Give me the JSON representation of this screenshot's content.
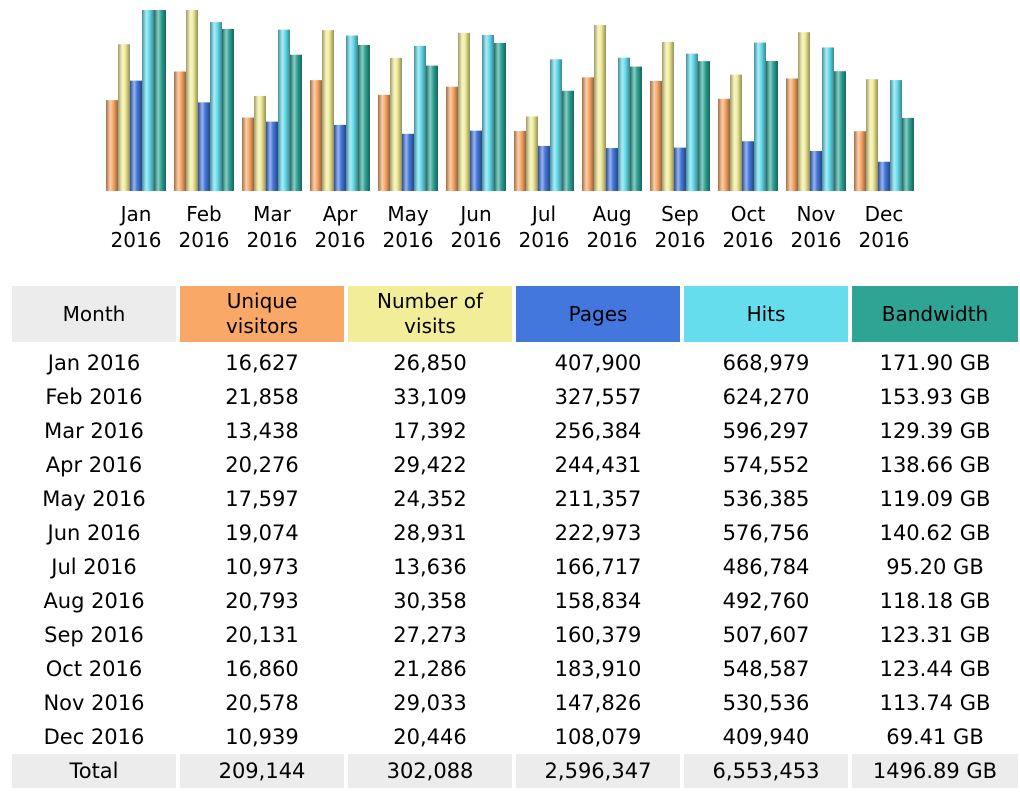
{
  "colors": {
    "unique_visitors": "#f9a868",
    "visits": "#f1ed98",
    "pages": "#4477dd",
    "hits": "#66dded",
    "bandwidth": "#2ea495",
    "month_header": "#ececec"
  },
  "chart_data": {
    "type": "bar",
    "categories": [
      "Jan 2016",
      "Feb 2016",
      "Mar 2016",
      "Apr 2016",
      "May 2016",
      "Jun 2016",
      "Jul 2016",
      "Aug 2016",
      "Sep 2016",
      "Oct 2016",
      "Nov 2016",
      "Dec 2016"
    ],
    "category_labels": [
      [
        "Jan",
        "2016"
      ],
      [
        "Feb",
        "2016"
      ],
      [
        "Mar",
        "2016"
      ],
      [
        "Apr",
        "2016"
      ],
      [
        "May",
        "2016"
      ],
      [
        "Jun",
        "2016"
      ],
      [
        "Jul",
        "2016"
      ],
      [
        "Aug",
        "2016"
      ],
      [
        "Sep",
        "2016"
      ],
      [
        "Oct",
        "2016"
      ],
      [
        "Nov",
        "2016"
      ],
      [
        "Dec",
        "2016"
      ]
    ],
    "series": [
      {
        "key": "unique_visitors",
        "values": [
          16627,
          21858,
          13438,
          20276,
          17597,
          19074,
          10973,
          20793,
          20131,
          16860,
          20578,
          10939
        ]
      },
      {
        "key": "visits",
        "values": [
          26850,
          33109,
          17392,
          29422,
          24352,
          28931,
          13636,
          30358,
          27273,
          21286,
          29033,
          20446
        ]
      },
      {
        "key": "pages",
        "values": [
          407900,
          327557,
          256384,
          244431,
          211357,
          222973,
          166717,
          158834,
          160379,
          183910,
          147826,
          108079
        ]
      },
      {
        "key": "hits",
        "values": [
          668979,
          624270,
          596297,
          574552,
          536385,
          576756,
          486784,
          492760,
          507607,
          548587,
          530536,
          409940
        ]
      },
      {
        "key": "bandwidth",
        "values": [
          171.9,
          153.93,
          129.39,
          138.66,
          119.09,
          140.62,
          95.2,
          118.18,
          123.31,
          123.44,
          113.74,
          69.41
        ],
        "unit": "GB"
      }
    ],
    "scale_groups": [
      [
        "unique_visitors",
        "visits"
      ],
      [
        "pages",
        "hits"
      ],
      [
        "bandwidth"
      ]
    ]
  },
  "table": {
    "headers": {
      "month": "Month",
      "unique_visitors": [
        "Unique",
        "visitors"
      ],
      "visits": [
        "Number of",
        "visits"
      ],
      "pages": "Pages",
      "hits": "Hits",
      "bandwidth": "Bandwidth"
    },
    "rows": [
      [
        "Jan 2016",
        "16,627",
        "26,850",
        "407,900",
        "668,979",
        "171.90 GB"
      ],
      [
        "Feb 2016",
        "21,858",
        "33,109",
        "327,557",
        "624,270",
        "153.93 GB"
      ],
      [
        "Mar 2016",
        "13,438",
        "17,392",
        "256,384",
        "596,297",
        "129.39 GB"
      ],
      [
        "Apr 2016",
        "20,276",
        "29,422",
        "244,431",
        "574,552",
        "138.66 GB"
      ],
      [
        "May 2016",
        "17,597",
        "24,352",
        "211,357",
        "536,385",
        "119.09 GB"
      ],
      [
        "Jun 2016",
        "19,074",
        "28,931",
        "222,973",
        "576,756",
        "140.62 GB"
      ],
      [
        "Jul 2016",
        "10,973",
        "13,636",
        "166,717",
        "486,784",
        "95.20 GB"
      ],
      [
        "Aug 2016",
        "20,793",
        "30,358",
        "158,834",
        "492,760",
        "118.18 GB"
      ],
      [
        "Sep 2016",
        "20,131",
        "27,273",
        "160,379",
        "507,607",
        "123.31 GB"
      ],
      [
        "Oct 2016",
        "16,860",
        "21,286",
        "183,910",
        "548,587",
        "123.44 GB"
      ],
      [
        "Nov 2016",
        "20,578",
        "29,033",
        "147,826",
        "530,536",
        "113.74 GB"
      ],
      [
        "Dec 2016",
        "10,939",
        "20,446",
        "108,079",
        "409,940",
        "69.41 GB"
      ]
    ],
    "total": [
      "Total",
      "209,144",
      "302,088",
      "2,596,347",
      "6,553,453",
      "1496.89 GB"
    ]
  }
}
